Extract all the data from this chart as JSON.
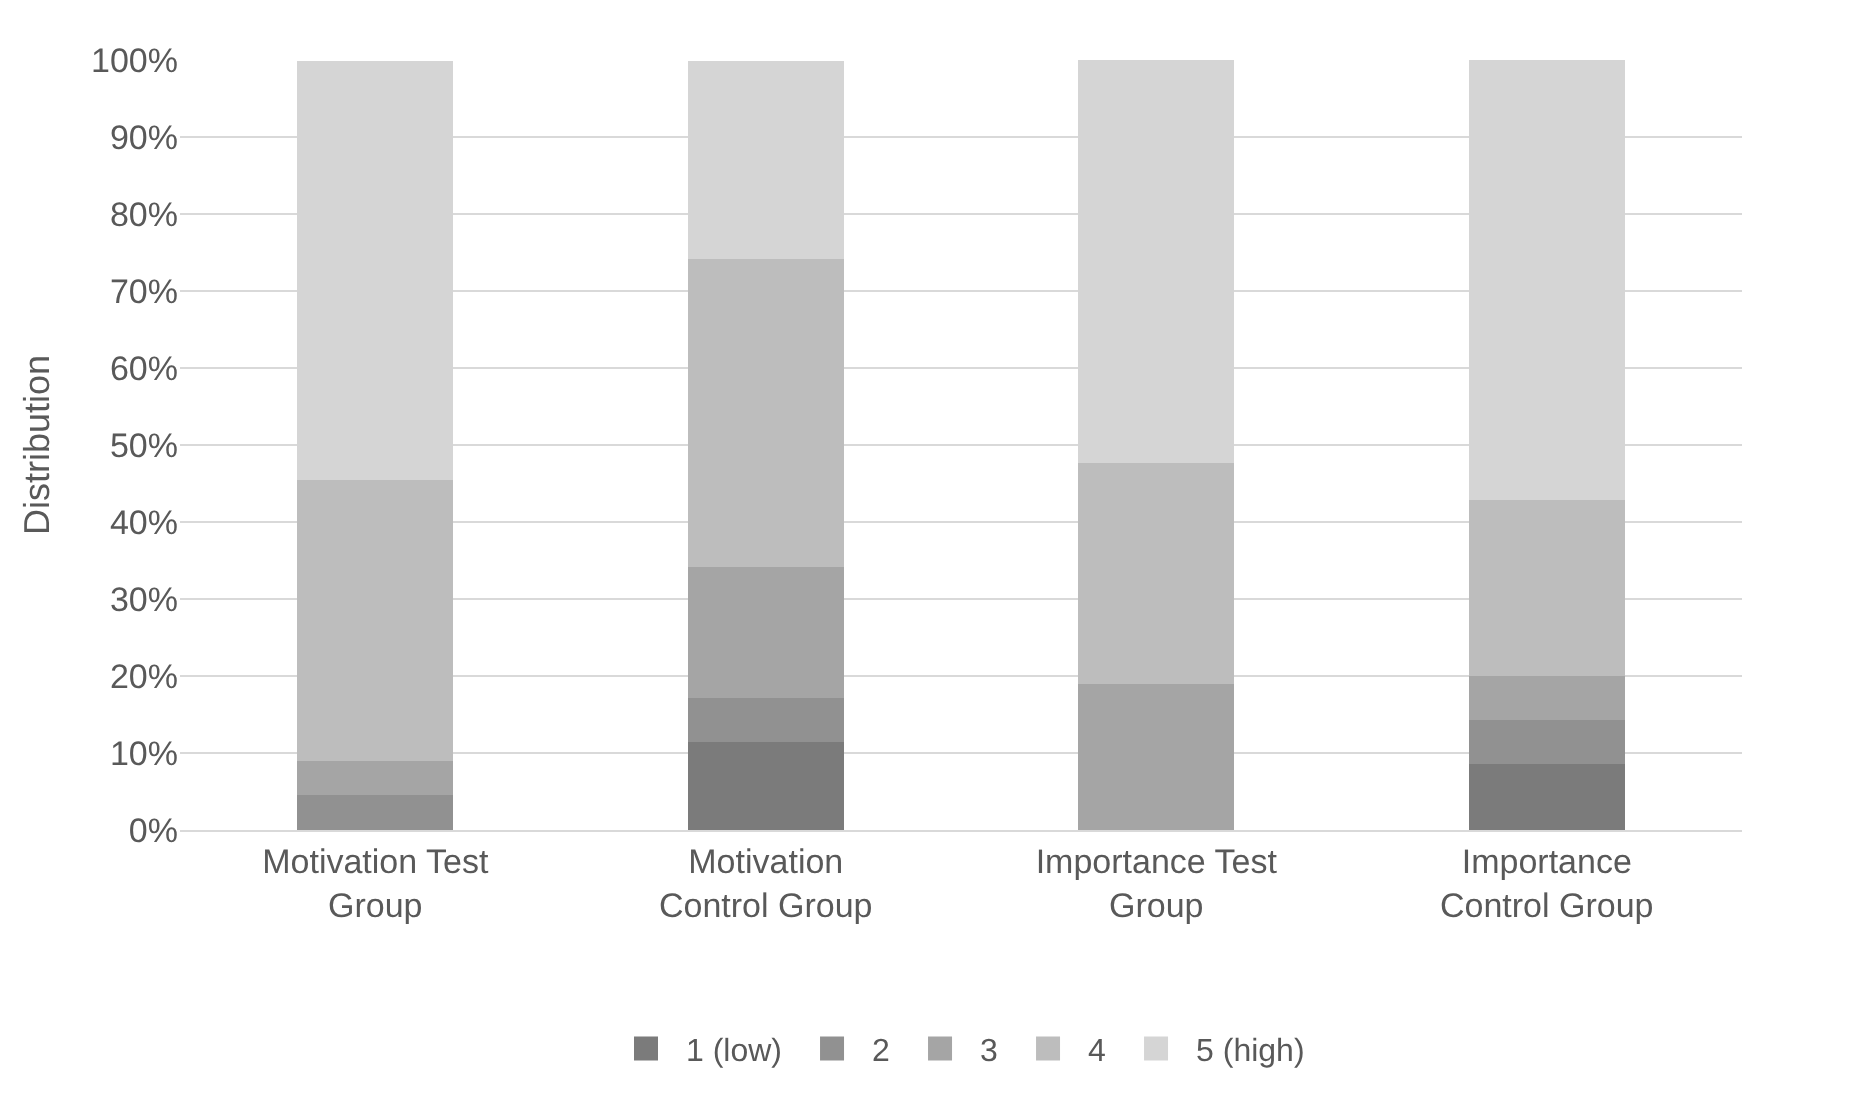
{
  "chart_data": {
    "type": "bar",
    "stacked": true,
    "ylabel": "Distribution",
    "categories": [
      "Motivation Test Group",
      "Motivation Control Group",
      "Importance Test Group",
      "Importance Control Group"
    ],
    "series": [
      {
        "name": "1 (low)",
        "color": "#7b7b7b",
        "values": [
          0,
          11.4,
          0,
          8.6
        ]
      },
      {
        "name": "2",
        "color": "#919191",
        "values": [
          4.5,
          5.7,
          0,
          5.7
        ]
      },
      {
        "name": "3",
        "color": "#a5a5a5",
        "values": [
          4.5,
          17.1,
          19.0,
          5.7
        ]
      },
      {
        "name": "4",
        "color": "#bdbdbd",
        "values": [
          36.4,
          40.0,
          28.6,
          22.9
        ]
      },
      {
        "name": "5 (high)",
        "color": "#d5d5d5",
        "values": [
          54.5,
          25.7,
          52.4,
          57.1
        ]
      }
    ],
    "ylim": [
      0,
      100
    ],
    "yticks": [
      {
        "value": 0,
        "label": "0%"
      },
      {
        "value": 10,
        "label": "10%"
      },
      {
        "value": 20,
        "label": "20%"
      },
      {
        "value": 30,
        "label": "30%"
      },
      {
        "value": 40,
        "label": "40%"
      },
      {
        "value": 50,
        "label": "50%"
      },
      {
        "value": 60,
        "label": "60%"
      },
      {
        "value": 70,
        "label": "70%"
      },
      {
        "value": 80,
        "label": "80%"
      },
      {
        "value": 90,
        "label": "90%"
      },
      {
        "value": 100,
        "label": "100%"
      }
    ],
    "grid": "y",
    "legend": "bottom"
  }
}
